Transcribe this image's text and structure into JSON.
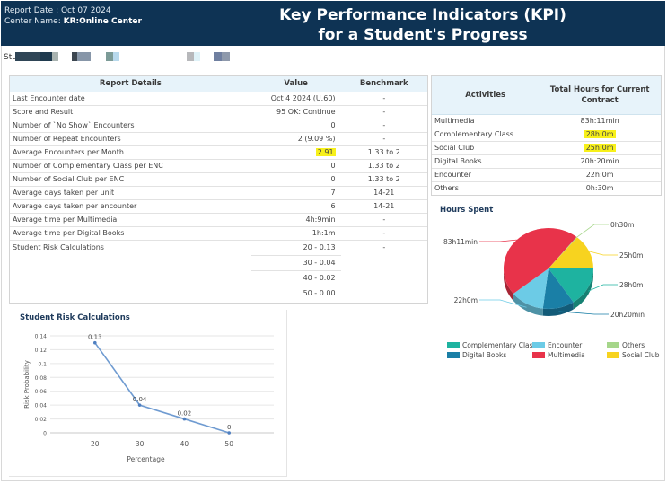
{
  "header": {
    "report_date_label": "Report Date : Oct 07 2024",
    "center_name_label": "Center Name: ",
    "center_name_value": "KR:Online Center",
    "title_line1": "Key Performance Indicators (KPI)",
    "title_line2": "for a Student's Progress"
  },
  "student": {
    "label_fragment": "Stu"
  },
  "report_table": {
    "headers": [
      "Report Details",
      "Value",
      "Benchmark"
    ],
    "rows": [
      {
        "detail": "Last Encounter date",
        "value": "Oct  4 2024  (U.60)",
        "benchmark": "-"
      },
      {
        "detail": "Score and Result",
        "value": "95 OK: Continue",
        "benchmark": "-"
      },
      {
        "detail": "Number of `No Show` Encounters",
        "value": "0",
        "benchmark": "-"
      },
      {
        "detail": "Number of Repeat Encounters",
        "value": "2  (9.09 %)",
        "benchmark": "-"
      },
      {
        "detail": "Average Encounters per Month",
        "value": "2.91",
        "benchmark": "1.33 to 2",
        "highlight": true
      },
      {
        "detail": "Number of Complementary Class per ENC",
        "value": "0",
        "benchmark": "1.33 to 2"
      },
      {
        "detail": "Number of Social Club per ENC",
        "value": "0",
        "benchmark": "1.33 to 2"
      },
      {
        "detail": "Average days taken per unit",
        "value": "7",
        "benchmark": "14-21"
      },
      {
        "detail": "Average days taken per encounter",
        "value": "6",
        "benchmark": "14-21"
      },
      {
        "detail": "Average time per Multimedia",
        "value": "4h:9min",
        "benchmark": "-"
      },
      {
        "detail": "Average time per Digital Books",
        "value": "1h:1m",
        "benchmark": "-"
      },
      {
        "detail": "Student Risk Calculations",
        "value": "20 - 0.13",
        "benchmark": "-"
      }
    ],
    "risk_sub_rows": [
      "30 - 0.04",
      "40 - 0.02",
      "50 - 0.00"
    ]
  },
  "activities_table": {
    "headers": [
      "Activities",
      "Total Hours for Current Contract"
    ],
    "rows": [
      {
        "activity": "Multimedia",
        "hours": "83h:11min"
      },
      {
        "activity": "Complementary Class",
        "hours": "28h:0m",
        "highlight": true
      },
      {
        "activity": "Social Club",
        "hours": "25h:0m",
        "highlight": true
      },
      {
        "activity": "Digital Books",
        "hours": "20h:20min"
      },
      {
        "activity": "Encounter",
        "hours": "22h:0m"
      },
      {
        "activity": "Others",
        "hours": "0h:30m"
      }
    ]
  },
  "colors": {
    "header_bg": "#0e3354",
    "table_header_bg": "#e7f3fa",
    "highlight": "#f7f01a",
    "line_series": "#6f9bd1"
  },
  "chart_data": [
    {
      "type": "pie",
      "title": "Hours Spent",
      "style": "3d",
      "slices": [
        {
          "name": "Multimedia",
          "value_minutes": 4991,
          "label": "83h11min",
          "color": "#e8334a"
        },
        {
          "name": "Encounter",
          "value_minutes": 1320,
          "label": "22h0m",
          "color": "#6ccbe6"
        },
        {
          "name": "Digital Books",
          "value_minutes": 1220,
          "label": "20h20min",
          "color": "#1a7fa6"
        },
        {
          "name": "Complementary Class",
          "value_minutes": 1680,
          "label": "28h0m",
          "color": "#1eb3a0"
        },
        {
          "name": "Social Club",
          "value_minutes": 1500,
          "label": "25h0m",
          "color": "#f7d31f"
        },
        {
          "name": "Others",
          "value_minutes": 30,
          "label": "0h30m",
          "color": "#a6d68a"
        }
      ],
      "legend": [
        "Complementary Class",
        "Encounter",
        "Others",
        "Digital Books",
        "Multimedia",
        "Social Club"
      ],
      "legend_position": "bottom"
    },
    {
      "type": "line",
      "title": "Student Risk Calculations",
      "xlabel": "Percentage",
      "ylabel": "Risk Probability",
      "x": [
        20,
        30,
        40,
        50
      ],
      "series": [
        {
          "name": "Risk Probability",
          "values": [
            0.13,
            0.04,
            0.02,
            0
          ]
        }
      ],
      "data_labels": [
        "0.13",
        "0.04",
        "0.02",
        "0"
      ],
      "x_ticks": [
        "20",
        "30",
        "40",
        "50"
      ],
      "y_ticks": [
        "0",
        "0.02",
        "0.04",
        "0.06",
        "0.08",
        "0.1",
        "0.12",
        "0.14"
      ],
      "ylim": [
        0,
        0.14
      ],
      "xlim": [
        10,
        60
      ],
      "grid": true
    }
  ]
}
